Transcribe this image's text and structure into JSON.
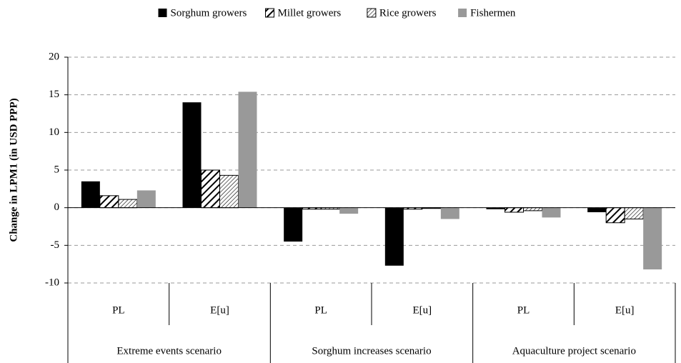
{
  "chart_data": {
    "type": "bar",
    "y_label": "Change in LPM1 (in USD PPP)",
    "categories": [
      "PL",
      "E[u]",
      "PL",
      "E[u]",
      "PL",
      "E[u]"
    ],
    "groups": [
      "Extreme events scenario",
      "Sorghum increases scenario",
      "Aquaculture project scenario"
    ],
    "series": [
      {
        "name": "Sorghum growers",
        "color": "#000000",
        "values": [
          3.5,
          14.0,
          -4.5,
          -7.7,
          -0.2,
          -0.6
        ]
      },
      {
        "name": "Millet growers",
        "color": "#000000",
        "pattern": "bold-hatch",
        "values": [
          1.6,
          5.0,
          -0.2,
          -0.2,
          -0.6,
          -2.0
        ]
      },
      {
        "name": "Rice growers",
        "color": "#000000",
        "pattern": "fine-hatch",
        "values": [
          1.1,
          4.3,
          -0.2,
          -0.1,
          -0.4,
          -1.5
        ]
      },
      {
        "name": "Fishermen",
        "color": "#999999",
        "values": [
          2.3,
          15.4,
          -0.8,
          -1.5,
          -1.3,
          -8.2
        ]
      }
    ],
    "ylim": [
      -10,
      20
    ],
    "yticks": [
      -10,
      -5,
      0,
      5,
      10,
      15,
      20
    ],
    "grid": true,
    "legend": "top"
  }
}
